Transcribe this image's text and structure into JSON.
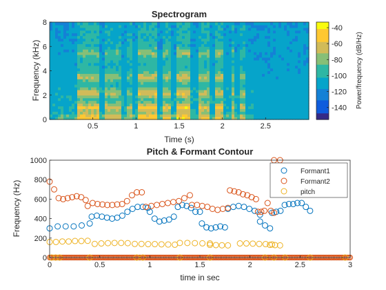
{
  "chart_data": [
    {
      "type": "heatmap",
      "title": "Spectrogram",
      "xlabel": "Time (s)",
      "ylabel": "Frequency (kHz)",
      "xlim": [
        0,
        3.0
      ],
      "ylim": [
        0,
        8
      ],
      "xticks": [
        "0.5",
        "1",
        "1.5",
        "2",
        "2.5"
      ],
      "yticks": [
        "0",
        "2",
        "4",
        "6",
        "8"
      ],
      "xtick_values": [
        0.5,
        1,
        1.5,
        2,
        2.5
      ],
      "ytick_values": [
        0,
        2,
        4,
        6,
        8
      ],
      "colorbar": {
        "label": "Power/frequency (dB/Hz)",
        "range": [
          -155,
          -33
        ],
        "ticks": [
          "-40",
          "-60",
          "-80",
          "-100",
          "-120",
          "-140"
        ],
        "tick_values": [
          -40,
          -60,
          -80,
          -100,
          -120,
          -140
        ]
      },
      "segments": [
        {
          "t0": 0.32,
          "t1": 0.57,
          "level": 0.85
        },
        {
          "t0": 0.63,
          "t1": 0.83,
          "level": 0.7
        },
        {
          "t0": 0.9,
          "t1": 0.96,
          "level": 0.55
        },
        {
          "t0": 1.02,
          "t1": 1.25,
          "level": 0.95
        },
        {
          "t0": 1.32,
          "t1": 1.42,
          "level": 0.8
        },
        {
          "t0": 1.46,
          "t1": 1.64,
          "level": 1.0
        },
        {
          "t0": 1.72,
          "t1": 1.85,
          "level": 0.85
        },
        {
          "t0": 1.93,
          "t1": 2.02,
          "level": 0.9
        },
        {
          "t0": 2.1,
          "t1": 2.14,
          "level": 0.7
        },
        {
          "t0": 2.2,
          "t1": 2.27,
          "level": 0.65
        }
      ],
      "bands_khz": [
        0.2,
        1.0,
        2.2,
        3.5,
        5.5
      ],
      "colors": [
        "#352a87",
        "#0f5cdd",
        "#1481d6",
        "#06a4ca",
        "#2eb7a4",
        "#87bf77",
        "#d1bb59",
        "#fec832",
        "#f9fb0e"
      ],
      "grid": false
    },
    {
      "type": "scatter",
      "title": "Pitch & Formant Contour",
      "xlabel": "time in sec",
      "ylabel": "Frequency (Hz)",
      "xlim": [
        0,
        3
      ],
      "ylim": [
        0,
        1000
      ],
      "xticks": [
        "0",
        "0.5",
        "1",
        "1.5",
        "2",
        "2.5",
        "3"
      ],
      "yticks": [
        "0",
        "200",
        "400",
        "600",
        "800",
        "1000"
      ],
      "xtick_values": [
        0,
        0.5,
        1,
        1.5,
        2,
        2.5,
        3
      ],
      "ytick_values": [
        0,
        200,
        400,
        600,
        800,
        1000
      ],
      "legend_position": "top-right",
      "grid": false,
      "series": [
        {
          "name": "Formant1",
          "color": "#0072bd",
          "segments": [
            {
              "x0": 0.0,
              "x1": 0.4,
              "y": [
                300,
                320,
                320,
                320,
                330,
                350
              ]
            },
            {
              "x0": 0.42,
              "x1": 0.98,
              "y": [
                420,
                430,
                420,
                410,
                400,
                410,
                430,
                470,
                500,
                520,
                520,
                510
              ]
            },
            {
              "x0": 1.0,
              "x1": 1.24,
              "y": [
                470,
                400,
                370,
                380,
                390,
                420
              ]
            },
            {
              "x0": 1.28,
              "x1": 1.5,
              "y": [
                520,
                540,
                530,
                510,
                470,
                470
              ]
            },
            {
              "x0": 1.52,
              "x1": 1.75,
              "y": [
                350,
                310,
                300,
                310,
                320,
                310
              ]
            },
            {
              "x0": 1.78,
              "x1": 2.1,
              "y": [
                500,
                520,
                530,
                520,
                500,
                480,
                440
              ]
            },
            {
              "x0": 2.1,
              "x1": 2.2,
              "y": [
                370,
                330,
                300
              ]
            },
            {
              "x0": 2.22,
              "x1": 2.6,
              "y": [
                460,
                470,
                480,
                540,
                550,
                550,
                560,
                560,
                520,
                480
              ]
            }
          ]
        },
        {
          "name": "Formant2",
          "color": "#d95319",
          "segments": [
            {
              "x0": 0.0,
              "x1": 0.36,
              "y": [
                780,
                700,
                610,
                600,
                610,
                620,
                630,
                620,
                590
              ]
            },
            {
              "x0": 0.38,
              "x1": 0.92,
              "y": [
                530,
                560,
                550,
                545,
                540,
                540,
                545,
                550,
                580,
                640,
                670,
                670
              ]
            },
            {
              "x0": 0.96,
              "x1": 1.4,
              "y": [
                520,
                530,
                540,
                550,
                560,
                570,
                580,
                610,
                640
              ]
            },
            {
              "x0": 1.42,
              "x1": 1.78,
              "y": [
                540,
                540,
                530,
                520,
                500,
                490,
                500,
                510
              ]
            },
            {
              "x0": 1.8,
              "x1": 2.06,
              "y": [
                690,
                680,
                670,
                650,
                640,
                620,
                600
              ]
            },
            {
              "x0": 2.08,
              "x1": 2.24,
              "y": [
                470,
                470,
                480,
                560,
                480,
                460
              ]
            },
            {
              "x0": 2.24,
              "x1": 2.3,
              "y": [
                1000,
                1000
              ]
            }
          ]
        },
        {
          "name": "pitch",
          "color": "#edb120",
          "segments": [
            {
              "x0": 0.0,
              "x1": 0.38,
              "y": [
                160,
                160,
                165,
                165,
                170,
                170,
                172
              ]
            },
            {
              "x0": 0.45,
              "x1": 0.78,
              "y": [
                140,
                145,
                148,
                150,
                150,
                148
              ]
            },
            {
              "x0": 0.85,
              "x1": 1.25,
              "y": [
                140,
                140,
                138,
                138,
                136,
                134,
                132
              ]
            },
            {
              "x0": 1.3,
              "x1": 1.6,
              "y": [
                150,
                150,
                148,
                146,
                145
              ]
            },
            {
              "x0": 1.6,
              "x1": 1.78,
              "y": [
                130,
                128,
                126,
                125
              ]
            },
            {
              "x0": 1.9,
              "x1": 2.22,
              "y": [
                145,
                145,
                143,
                140,
                138,
                135
              ]
            },
            {
              "x0": 2.2,
              "x1": 2.3,
              "y": [
                130,
                128,
                125
              ]
            }
          ],
          "zero_points": [
            0.02,
            0.06,
            0.1,
            0.4,
            0.87,
            0.93,
            1.3,
            1.6,
            2.15,
            2.24,
            2.35,
            2.6,
            2.95
          ]
        }
      ],
      "baseline_zero_color": "#d95319"
    }
  ]
}
